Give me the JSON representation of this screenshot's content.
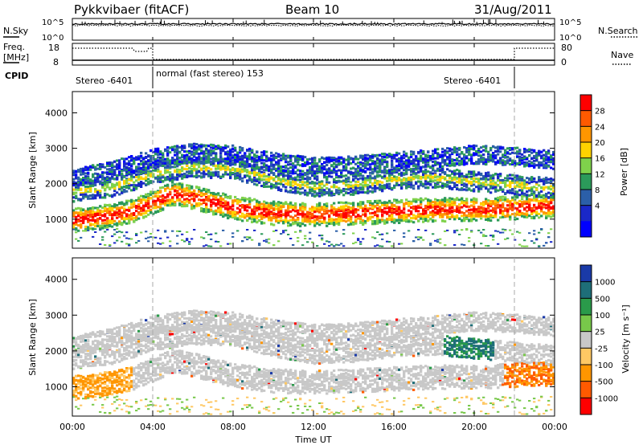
{
  "header": {
    "station": "Pykkvibaer (fitACF)",
    "beam": "Beam 10",
    "date": "31/Aug/2011"
  },
  "top_panels": {
    "nsky_label": "N.Sky",
    "nsky_ticks": [
      "10^5",
      "10^0"
    ],
    "nsearch_label": "N.Search",
    "nsearch_ticks": [
      "10^5",
      "10^0"
    ],
    "freq_label_1": "Freq.",
    "freq_label_2": "[MHz]",
    "freq_ticks": [
      "18",
      "8"
    ],
    "nave_label": "Nave",
    "nave_ticks": [
      "80",
      "0"
    ],
    "cpid_label": "CPID",
    "cpid_segments": [
      {
        "label": "Stereo -6401",
        "start_hour": 0,
        "end_hour": 4
      },
      {
        "label": "normal (fast stereo) 153",
        "start_hour": 4,
        "end_hour": 22
      },
      {
        "label": "Stereo -6401",
        "start_hour": 22,
        "end_hour": 24
      }
    ]
  },
  "chart_data": [
    {
      "type": "heatmap",
      "name": "power",
      "ylabel": "Slant Range [km]",
      "yticks": [
        "4000",
        "3000",
        "2000",
        "1000"
      ],
      "ytick_values": [
        4000,
        3000,
        2000,
        1000
      ],
      "ylim": [
        180,
        4600
      ],
      "xlim": [
        0,
        24
      ],
      "colorbar": {
        "label": "Power [dB]",
        "ticks": [
          "28",
          "24",
          "20",
          "16",
          "12",
          "8",
          "4"
        ],
        "tick_values": [
          28,
          24,
          20,
          16,
          12,
          8,
          4
        ],
        "colors": [
          "#ff0000",
          "#ff5a00",
          "#ff9600",
          "#ffd200",
          "#7fd24b",
          "#2b9a5a",
          "#2b5fa8",
          "#1a28c8",
          "#0000ff"
        ]
      },
      "bands": [
        {
          "hour_points": [
            0,
            1,
            2,
            3,
            4,
            5,
            6,
            7,
            8,
            10,
            12,
            14,
            16,
            18,
            20,
            22,
            24
          ],
          "range_points": [
            1000,
            1050,
            1150,
            1250,
            1500,
            1750,
            1650,
            1500,
            1350,
            1200,
            1150,
            1200,
            1250,
            1300,
            1300,
            1350,
            1400
          ],
          "width": 330,
          "level": "strong"
        },
        {
          "hour_points": [
            0,
            2,
            4,
            6,
            8,
            10,
            12,
            14,
            16,
            18,
            20,
            22,
            24
          ],
          "range_points": [
            1800,
            1950,
            2300,
            2500,
            2450,
            2150,
            1950,
            2000,
            2150,
            2200,
            2100,
            2000,
            1900
          ],
          "width": 280,
          "level": "medium"
        },
        {
          "hour_points": [
            0,
            2,
            4,
            6,
            8,
            10,
            12,
            14,
            16,
            18,
            20,
            22,
            24
          ],
          "range_points": [
            2200,
            2400,
            2750,
            2900,
            2850,
            2650,
            2500,
            2550,
            2650,
            2750,
            2850,
            2800,
            2700
          ],
          "width": 260,
          "level": "weak"
        }
      ]
    },
    {
      "type": "heatmap",
      "name": "velocity",
      "ylabel": "Slant Range [km]",
      "yticks": [
        "4000",
        "3000",
        "2000",
        "1000"
      ],
      "ytick_values": [
        4000,
        3000,
        2000,
        1000
      ],
      "ylim": [
        180,
        4600
      ],
      "xlim": [
        0,
        24
      ],
      "xticks": [
        "00:00",
        "04:00",
        "08:00",
        "12:00",
        "16:00",
        "20:00",
        "00:00"
      ],
      "xtick_values": [
        0,
        4,
        8,
        12,
        16,
        20,
        24
      ],
      "xlabel": "Time UT",
      "colorbar": {
        "label": "Velocity [m s⁻¹]",
        "ticks": [
          "1000",
          "500",
          "100",
          "25",
          "-25",
          "-100",
          "-500",
          "-1000"
        ],
        "tick_values": [
          1000,
          500,
          100,
          25,
          -25,
          -100,
          -500,
          -1000
        ],
        "colors": [
          "#1a3aa8",
          "#1e6e78",
          "#2a9a4a",
          "#78c84a",
          "#c8c8c8",
          "#ffc864",
          "#ff9600",
          "#ff5a00",
          "#ff0000"
        ]
      }
    }
  ]
}
